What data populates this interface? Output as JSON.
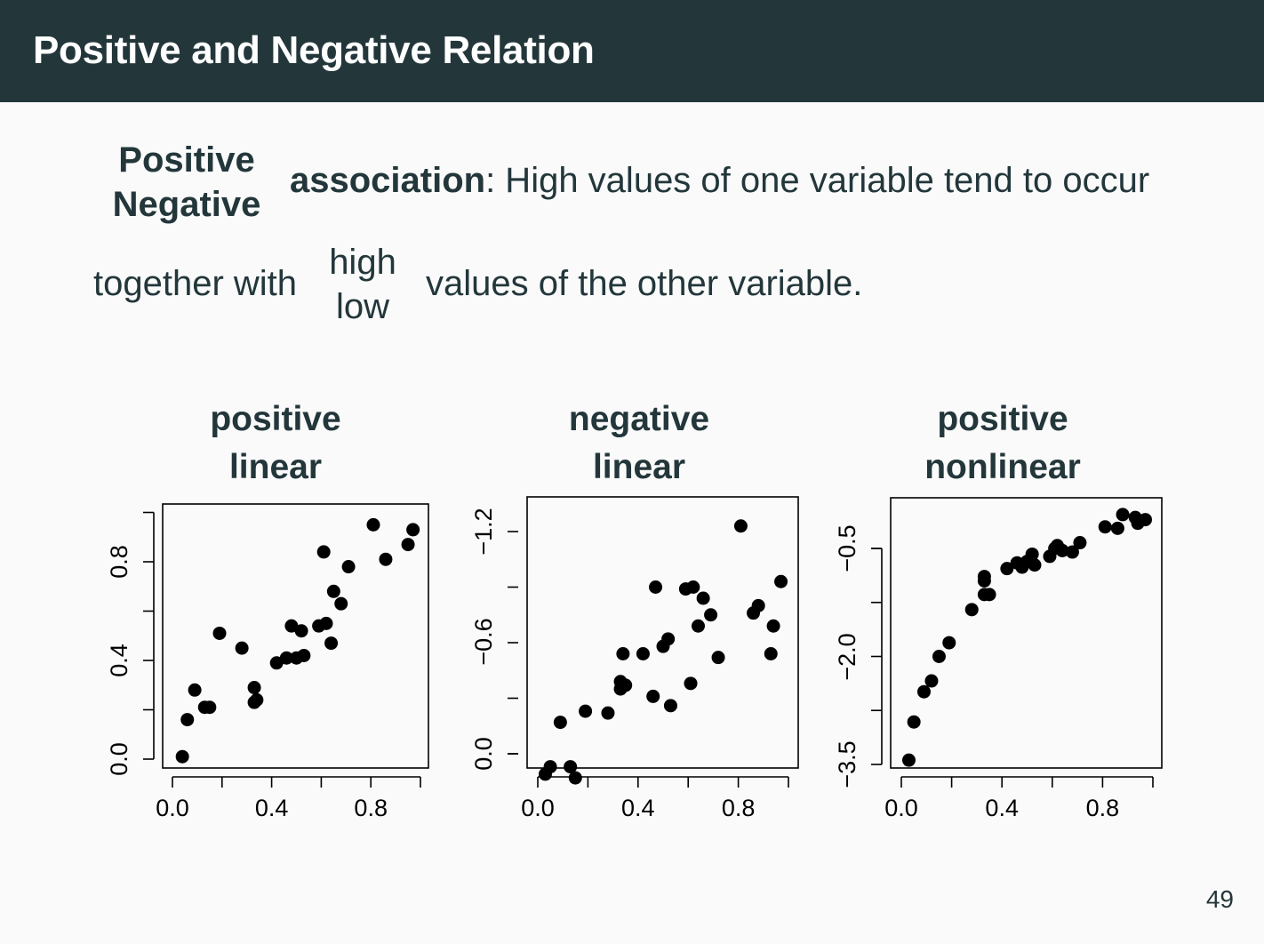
{
  "header": {
    "title": "Positive and Negative Relation"
  },
  "definition": {
    "stack1": [
      "Positive",
      "Negative"
    ],
    "line1_bold": "association",
    "line1_rest": ": High values of one variable tend to occur",
    "line2_start": "together with",
    "stack2": [
      "high",
      "low"
    ],
    "line2_end": "values of the other variable."
  },
  "page_number": "49",
  "chart_data": [
    {
      "type": "scatter",
      "title": [
        "positive",
        "linear"
      ],
      "xlim": [
        0,
        1
      ],
      "ylim": [
        0,
        1
      ],
      "xticks": [
        "0.0",
        "0.4",
        "0.8"
      ],
      "yticks": [
        "0.0",
        "0.4",
        "0.8"
      ],
      "x": [
        0.04,
        0.06,
        0.09,
        0.13,
        0.15,
        0.19,
        0.28,
        0.33,
        0.33,
        0.34,
        0.42,
        0.46,
        0.48,
        0.5,
        0.52,
        0.53,
        0.59,
        0.61,
        0.62,
        0.64,
        0.65,
        0.68,
        0.71,
        0.81,
        0.86,
        0.95,
        0.97
      ],
      "y": [
        0.01,
        0.16,
        0.28,
        0.21,
        0.21,
        0.51,
        0.45,
        0.23,
        0.29,
        0.24,
        0.39,
        0.41,
        0.54,
        0.41,
        0.52,
        0.42,
        0.54,
        0.84,
        0.55,
        0.47,
        0.68,
        0.63,
        0.78,
        0.95,
        0.81,
        0.87,
        0.93
      ]
    },
    {
      "type": "scatter",
      "title": [
        "negative",
        "linear"
      ],
      "xlim": [
        0,
        1
      ],
      "ylim": [
        -1.25,
        0.13
      ],
      "xticks": [
        "0.0",
        "0.4",
        "0.8"
      ],
      "yticks": [
        "0.0",
        "-0.6",
        "-1.2"
      ],
      "x": [
        0.03,
        0.05,
        0.09,
        0.13,
        0.15,
        0.19,
        0.28,
        0.33,
        0.33,
        0.35,
        0.34,
        0.42,
        0.46,
        0.47,
        0.5,
        0.53,
        0.52,
        0.59,
        0.61,
        0.62,
        0.64,
        0.66,
        0.69,
        0.72,
        0.81,
        0.86,
        0.88,
        0.93,
        0.94,
        0.97
      ],
      "y": [
        0.11,
        0.07,
        -0.17,
        0.07,
        0.13,
        -0.23,
        -0.22,
        -0.35,
        -0.39,
        -0.37,
        -0.54,
        -0.54,
        -0.31,
        -0.9,
        -0.58,
        -0.26,
        -0.62,
        -0.89,
        -0.38,
        -0.9,
        -0.69,
        -0.84,
        -0.75,
        -0.52,
        -1.23,
        -0.76,
        -0.8,
        -0.54,
        -0.69,
        -0.93
      ]
    },
    {
      "type": "scatter",
      "title": [
        "positive",
        "nonlinear"
      ],
      "xlim": [
        0,
        1
      ],
      "ylim": [
        -3.55,
        -0.08
      ],
      "xticks": [
        "0.0",
        "0.4",
        "0.8"
      ],
      "yticks": [
        "-3.5",
        "-2.0",
        "-0.5"
      ],
      "x": [
        0.03,
        0.05,
        0.09,
        0.12,
        0.15,
        0.19,
        0.28,
        0.33,
        0.33,
        0.33,
        0.35,
        0.42,
        0.46,
        0.48,
        0.5,
        0.52,
        0.53,
        0.59,
        0.61,
        0.62,
        0.64,
        0.68,
        0.71,
        0.81,
        0.86,
        0.88,
        0.93,
        0.94,
        0.97
      ],
      "y": [
        -3.44,
        -2.91,
        -2.49,
        -2.34,
        -2.0,
        -1.81,
        -1.35,
        -0.89,
        -0.95,
        -1.14,
        -1.14,
        -0.78,
        -0.7,
        -0.76,
        -0.68,
        -0.58,
        -0.73,
        -0.61,
        -0.5,
        -0.46,
        -0.53,
        -0.55,
        -0.42,
        -0.2,
        -0.22,
        -0.03,
        -0.07,
        -0.15,
        -0.1
      ]
    }
  ]
}
